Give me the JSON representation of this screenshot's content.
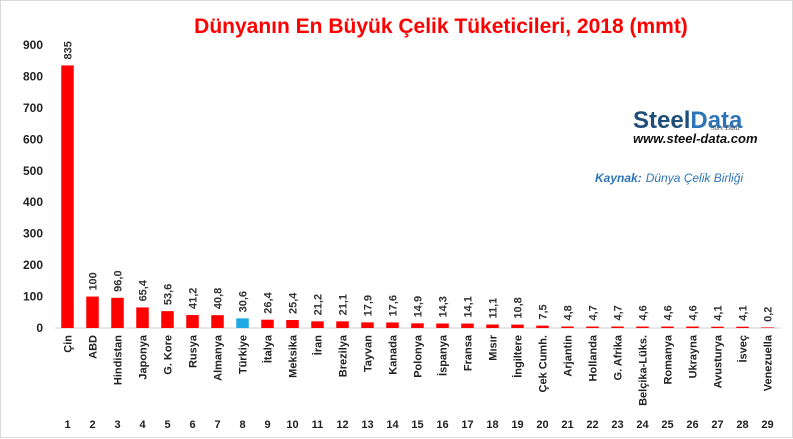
{
  "chart_data": {
    "type": "bar",
    "title": "Dünyanın En Büyük Çelik Tüketicileri, 2018 (mmt)",
    "xlabel": "",
    "ylabel": "",
    "ylim": [
      0,
      900
    ],
    "yticks": [
      0,
      100,
      200,
      300,
      400,
      500,
      600,
      700,
      800,
      900
    ],
    "grid": false,
    "legend": "none",
    "categories": [
      "Çin",
      "ABD",
      "Hindistan",
      "Japonya",
      "G. Kore",
      "Rusya",
      "Almanya",
      "Türkiye",
      "İtalya",
      "Meksika",
      "İran",
      "Brezilya",
      "Tayvan",
      "Kanada",
      "Polonya",
      "İspanya",
      "Fransa",
      "Mısır",
      "İngiltere",
      "Çek Cumh.",
      "Arjantin",
      "Hollanda",
      "G. Afrika",
      "Belçika-Lüks.",
      "Romanya",
      "Ukrayna",
      "Avusturya",
      "İsveç",
      "Venezuella"
    ],
    "ranks": [
      "1",
      "2",
      "3",
      "4",
      "5",
      "6",
      "7",
      "8",
      "9",
      "10",
      "11",
      "12",
      "13",
      "14",
      "15",
      "16",
      "17",
      "18",
      "19",
      "20",
      "21",
      "22",
      "23",
      "24",
      "25",
      "26",
      "27",
      "28",
      "29"
    ],
    "values": [
      835,
      100,
      96.0,
      65.4,
      53.6,
      41.2,
      40.8,
      30.6,
      26.4,
      25.4,
      21.2,
      21.1,
      17.9,
      17.6,
      14.9,
      14.3,
      14.1,
      11.1,
      10.8,
      7.5,
      4.8,
      4.7,
      4.7,
      4.6,
      4.6,
      4.6,
      4.1,
      4.1,
      0.2
    ],
    "value_labels": [
      "835",
      "100",
      "96,0",
      "65,4",
      "53,6",
      "41,2",
      "40,8",
      "30,6",
      "26,4",
      "25,4",
      "21,2",
      "21,1",
      "17,9",
      "17,6",
      "14,9",
      "14,3",
      "14,1",
      "11,1",
      "10,8",
      "7,5",
      "4,8",
      "4,7",
      "4,7",
      "4,6",
      "4,6",
      "4,6",
      "4,1",
      "4,1",
      "0,2"
    ],
    "colors": {
      "default": "#ff0000",
      "highlight": "#1fa9e1",
      "highlight_category": "Türkiye"
    }
  },
  "logo": {
    "steel": "Steel",
    "data": "Data",
    "tagline": "Sure Data",
    "url": "www.steel-data.com"
  },
  "source": {
    "label": "Kaynak:",
    "value": "Dünya Çelik Birliği"
  }
}
